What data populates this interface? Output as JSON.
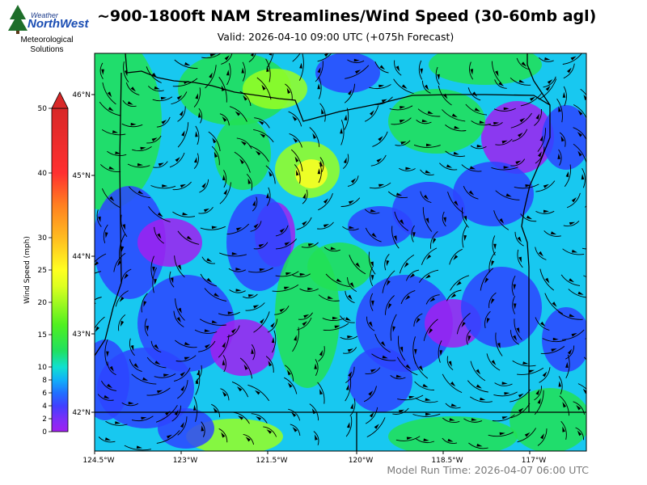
{
  "logo": {
    "line1": "Weather",
    "line2": "NorthWest",
    "line3": "Meteorological",
    "line4": "Solutions"
  },
  "title": "~900-1800ft NAM Streamlines/Wind Speed (30-60mb agl)",
  "subtitle": "Valid: 2026-04-10 09:00 UTC  (+075h Forecast)",
  "footer": "Model Run Time: 2026-04-07 06:00 UTC",
  "colorbar": {
    "label": "Wind Speed (mph)",
    "ticks": [
      "0",
      "2",
      "4",
      "6",
      "8",
      "10",
      "15",
      "20",
      "25",
      "30",
      "40",
      "50"
    ]
  },
  "axes": {
    "lon_ticks": [
      "124.5°W",
      "123°W",
      "121.5°W",
      "120°W",
      "118.5°W",
      "117°W"
    ],
    "lat_ticks": [
      "46°N",
      "45°N",
      "44°N",
      "43°N",
      "42°N"
    ]
  },
  "colors": {
    "strong_blue": "#2d44ff",
    "purple": "#a020f0",
    "cyan": "#18c8f0",
    "green": "#22e055",
    "lime": "#99ff22",
    "yellow": "#ffff22"
  }
}
